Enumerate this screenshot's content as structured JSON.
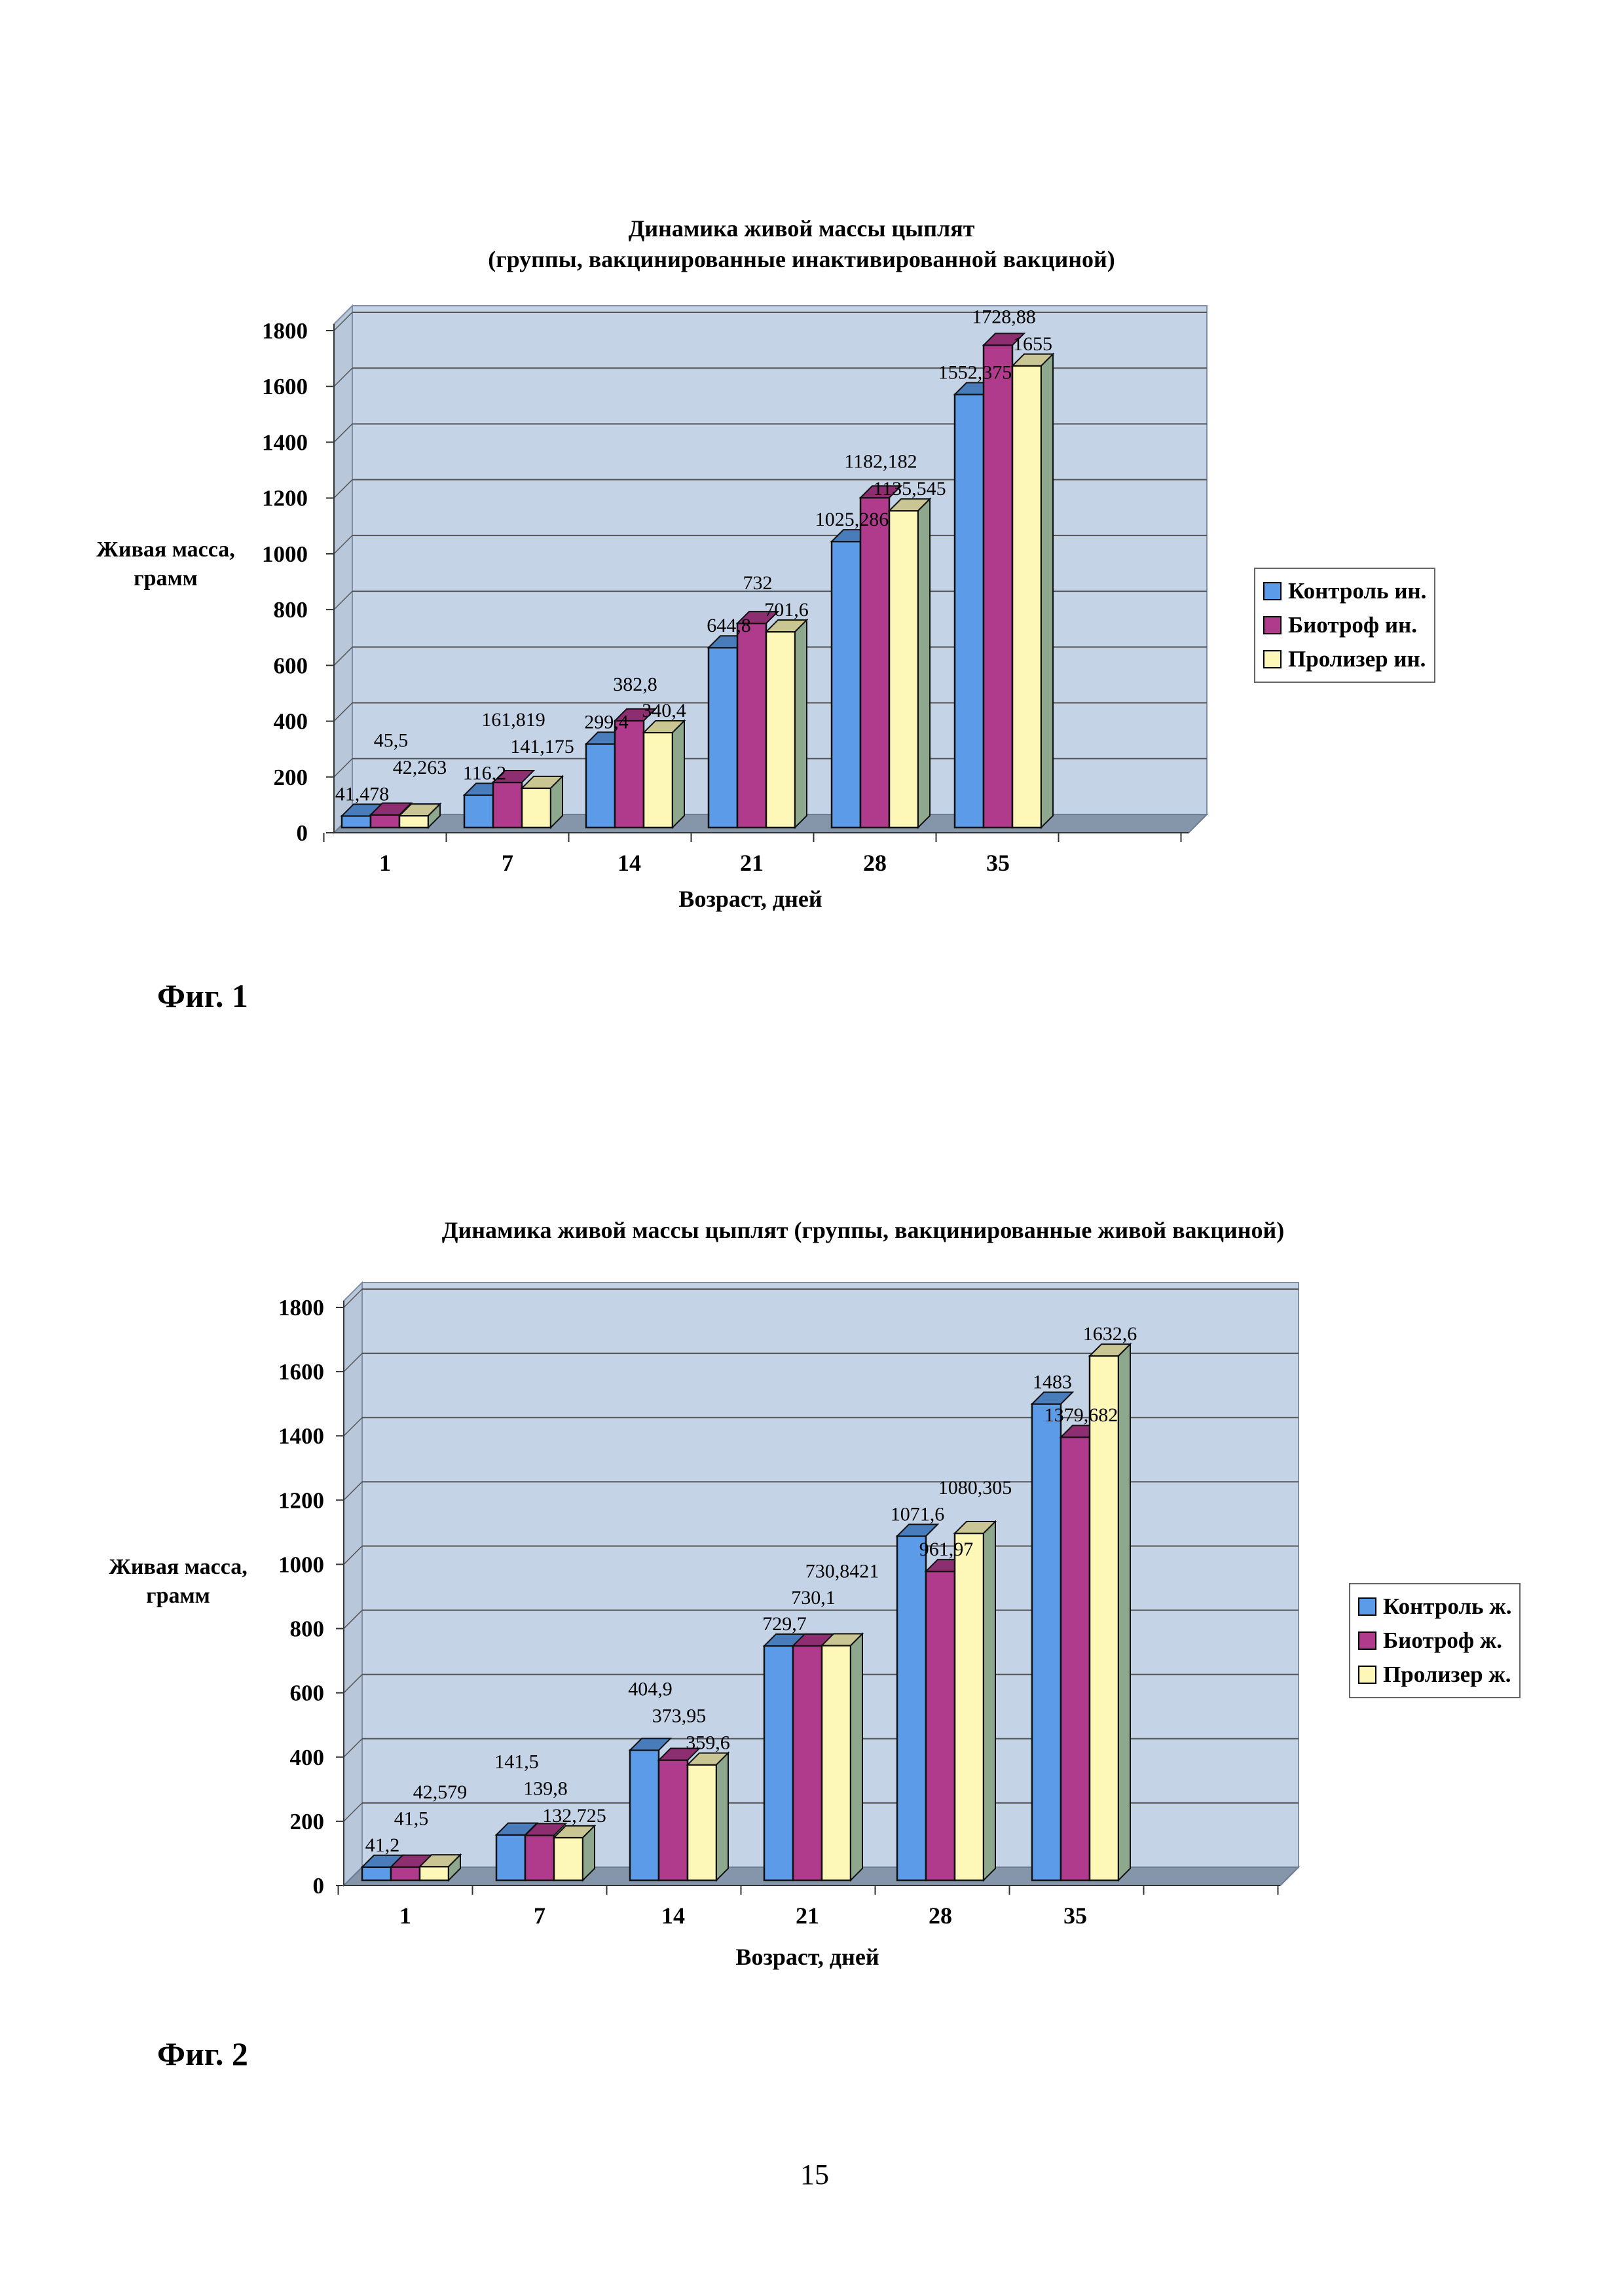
{
  "page_number": "15",
  "chart_data": [
    {
      "type": "bar",
      "figure_label": "Фиг. 1",
      "title": "Динамика живой массы цыплят",
      "subtitle": "(группы, вакцинированные инактивированной вакциной)",
      "xlabel": "Возраст, дней",
      "ylabel": [
        "Живая масса,",
        "грамм"
      ],
      "categories": [
        "1",
        "7",
        "14",
        "21",
        "28",
        "35"
      ],
      "ylim": [
        0,
        1800
      ],
      "yticks": [
        0,
        200,
        400,
        600,
        800,
        1000,
        1200,
        1400,
        1600,
        1800
      ],
      "grid": true,
      "legend_position": "right",
      "series": [
        {
          "name": "Контроль ин.",
          "color": "#5b9be8",
          "values": [
            41.478,
            116.2,
            299.4,
            644.8,
            1025.286,
            1552.375
          ]
        },
        {
          "name": "Биотроф ин.",
          "color": "#b03a8c",
          "values": [
            45.5,
            161.819,
            382.8,
            732,
            1182.182,
            1728.88
          ]
        },
        {
          "name": "Пролизер ин.",
          "color": "#fdf8b8",
          "values": [
            42.263,
            141.175,
            340.4,
            701.6,
            1135.545,
            1655
          ]
        }
      ]
    },
    {
      "type": "bar",
      "figure_label": "Фиг. 2",
      "title": "Динамика живой массы цыплят (группы, вакцинированные живой вакциной)",
      "subtitle": "",
      "xlabel": "Возраст, дней",
      "ylabel": [
        "Живая масса,",
        "грамм"
      ],
      "categories": [
        "1",
        "7",
        "14",
        "21",
        "28",
        "35"
      ],
      "ylim": [
        0,
        1800
      ],
      "yticks": [
        0,
        200,
        400,
        600,
        800,
        1000,
        1200,
        1400,
        1600,
        1800
      ],
      "grid": true,
      "legend_position": "right",
      "series": [
        {
          "name": "Контроль ж.",
          "color": "#5b9be8",
          "values": [
            41.2,
            141.5,
            404.9,
            729.7,
            1071.6,
            1483
          ]
        },
        {
          "name": "Биотроф ж.",
          "color": "#b03a8c",
          "values": [
            41.5,
            139.8,
            373.95,
            730.1,
            961.97,
            1379.682
          ]
        },
        {
          "name": "Пролизер ж.",
          "color": "#fdf8b8",
          "values": [
            42.579,
            132.725,
            359.6,
            730.8421,
            1080.305,
            1632.6
          ]
        }
      ]
    }
  ]
}
